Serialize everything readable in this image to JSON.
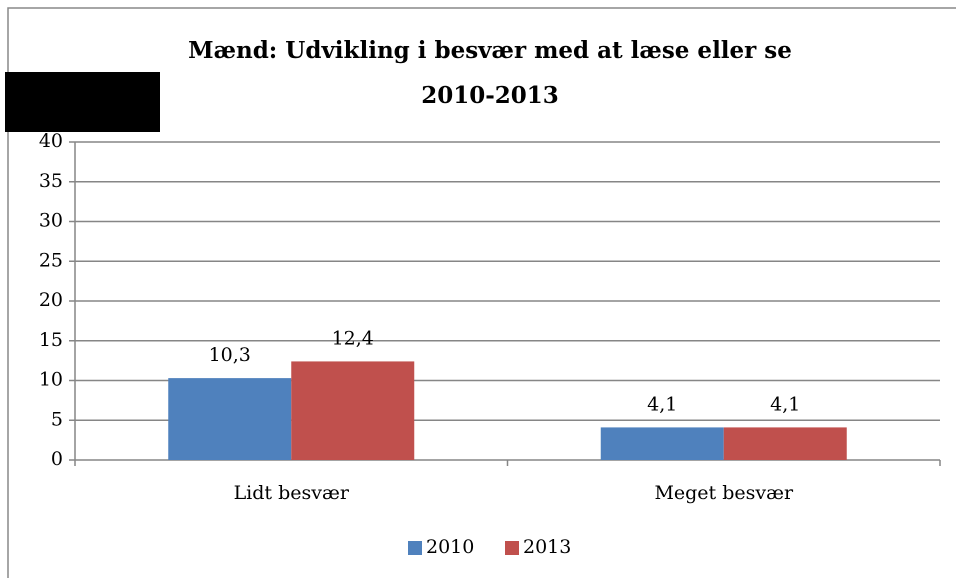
{
  "chart_data": {
    "type": "bar",
    "title": "Mænd: Udvikling i besvær med at læse eller se",
    "subtitle": "2010-2013",
    "categories": [
      "Lidt besvær",
      "Meget besvær"
    ],
    "series": [
      {
        "name": "2010",
        "color": "#4f81bd",
        "values": [
          10.3,
          4.1
        ],
        "value_labels": [
          "10,3",
          "4,1"
        ]
      },
      {
        "name": "2013",
        "color": "#c0504d",
        "values": [
          12.4,
          4.1
        ],
        "value_labels": [
          "12,4",
          "4,1"
        ]
      }
    ],
    "ylim": [
      0,
      40
    ],
    "yticks": [
      0,
      5,
      10,
      15,
      20,
      25,
      30,
      35,
      40
    ],
    "grid": true,
    "legend": "bottom"
  }
}
